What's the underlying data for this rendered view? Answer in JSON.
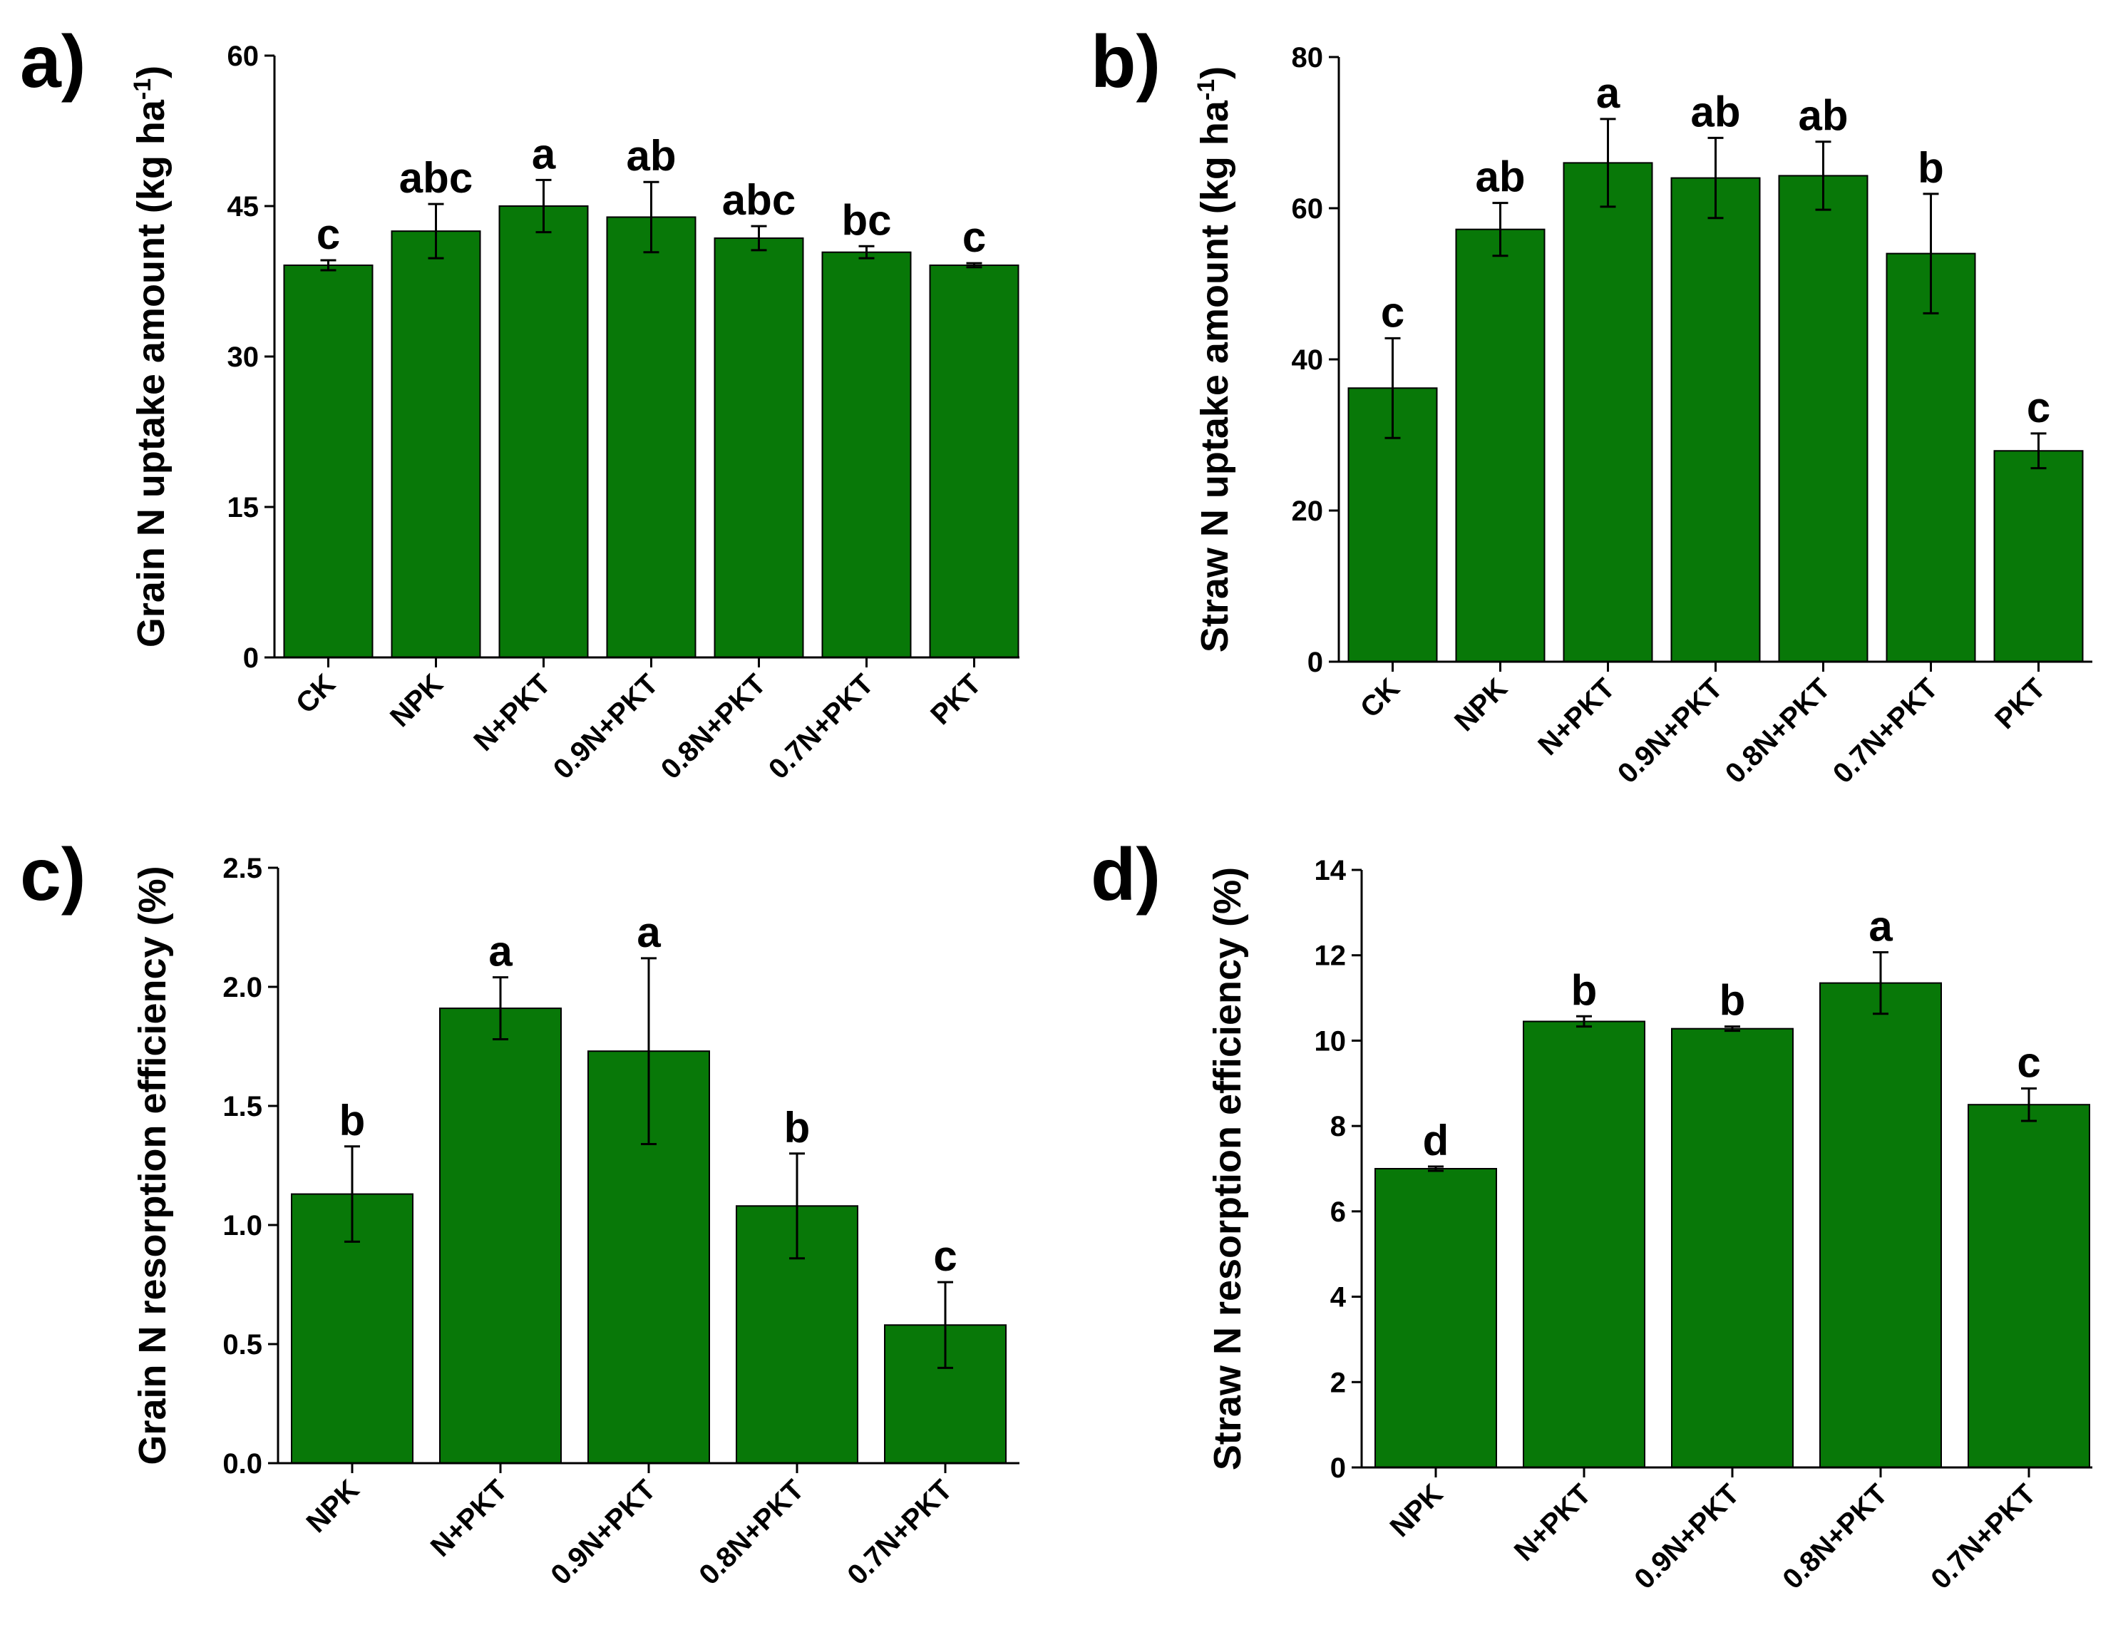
{
  "chart_data": [
    {
      "panel": "a)",
      "type": "bar",
      "categories": [
        "CK",
        "NPK",
        "N+PKT",
        "0.9N+PKT",
        "0.8N+PKT",
        "0.7N+PKT",
        "PKT"
      ],
      "values": [
        39.1,
        42.5,
        45.0,
        43.9,
        41.8,
        40.4,
        39.1
      ],
      "errors": [
        0.5,
        2.7,
        2.6,
        3.5,
        1.2,
        0.6,
        0.2
      ],
      "significance": [
        "c",
        "abc",
        "a",
        "ab",
        "abc",
        "bc",
        "c"
      ],
      "ylabel": "Grain N uptake amount (kg ha",
      "ylabel_sup": "-1",
      "ylabel_end": ")",
      "ylim": [
        0,
        60
      ],
      "yticks": [
        "0",
        "15",
        "30",
        "45",
        "60"
      ],
      "bar_color": "#087808"
    },
    {
      "panel": "b)",
      "type": "bar",
      "categories": [
        "CK",
        "NPK",
        "N+PKT",
        "0.9N+PKT",
        "0.8N+PKT",
        "0.7N+PKT",
        "PKT"
      ],
      "values": [
        36.2,
        57.2,
        66.0,
        64.0,
        64.3,
        54.0,
        27.9
      ],
      "errors": [
        6.6,
        3.5,
        5.8,
        5.3,
        4.5,
        7.9,
        2.3
      ],
      "significance": [
        "c",
        "ab",
        "a",
        "ab",
        "ab",
        "b",
        "c"
      ],
      "ylabel": "Straw N uptake amount (kg ha",
      "ylabel_sup": "-1",
      "ylabel_end": ")",
      "ylim": [
        0,
        80
      ],
      "yticks": [
        "0",
        "20",
        "40",
        "60",
        "80"
      ],
      "bar_color": "#087808"
    },
    {
      "panel": "c)",
      "type": "bar",
      "categories": [
        "NPK",
        "N+PKT",
        "0.9N+PKT",
        "0.8N+PKT",
        "0.7N+PKT"
      ],
      "values": [
        1.13,
        1.91,
        1.73,
        1.08,
        0.58
      ],
      "errors": [
        0.2,
        0.13,
        0.39,
        0.22,
        0.18
      ],
      "significance": [
        "b",
        "a",
        "a",
        "b",
        "c"
      ],
      "ylabel": "Grain N resorption efficiency (%)",
      "ylabel_sup": "",
      "ylabel_end": "",
      "ylim": [
        0,
        2.5
      ],
      "yticks": [
        "0.0",
        "0.5",
        "1.0",
        "1.5",
        "2.0",
        "2.5"
      ],
      "bar_color": "#087808"
    },
    {
      "panel": "d)",
      "type": "bar",
      "categories": [
        "NPK",
        "N+PKT",
        "0.9N+PKT",
        "0.8N+PKT",
        "0.7N+PKT"
      ],
      "values": [
        7.0,
        10.45,
        10.28,
        11.35,
        8.5
      ],
      "errors": [
        0.05,
        0.12,
        0.05,
        0.72,
        0.38
      ],
      "significance": [
        "d",
        "b",
        "b",
        "a",
        "c"
      ],
      "ylabel": "Straw N resorption efficiency (%)",
      "ylabel_sup": "",
      "ylabel_end": "",
      "ylim": [
        0,
        14
      ],
      "yticks": [
        "0",
        "2",
        "4",
        "6",
        "8",
        "10",
        "12",
        "14"
      ],
      "bar_color": "#087808"
    }
  ]
}
